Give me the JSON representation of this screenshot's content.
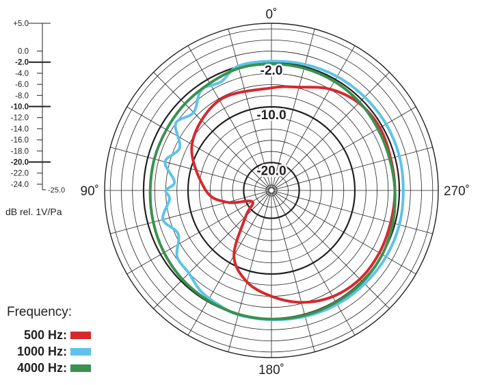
{
  "chart_data": {
    "type": "polar",
    "angle_labels": [
      {
        "deg": 0,
        "text": "0˚"
      },
      {
        "deg": 90,
        "text": "90˚"
      },
      {
        "deg": 180,
        "text": "180˚"
      },
      {
        "deg": 270,
        "text": "270˚"
      }
    ],
    "angle_direction": "counterclockwise",
    "radial_range": [
      -25,
      5
    ],
    "radial_unit": "dB rel. 1V/Pa",
    "radial_ticks": [
      {
        "value": 5,
        "text": "+5.0",
        "bold": false
      },
      {
        "value": 0,
        "text": "0.0",
        "bold": false
      },
      {
        "value": -2,
        "text": "-2.0",
        "bold": true
      },
      {
        "value": -4,
        "text": "-4.0",
        "bold": false
      },
      {
        "value": -6,
        "text": "-6.0",
        "bold": false
      },
      {
        "value": -8,
        "text": "-8.0",
        "bold": false
      },
      {
        "value": -10,
        "text": "-10.0",
        "bold": true
      },
      {
        "value": -12,
        "text": "-12.0",
        "bold": false
      },
      {
        "value": -14,
        "text": "-14.0",
        "bold": false
      },
      {
        "value": -16,
        "text": "-16.0",
        "bold": false
      },
      {
        "value": -18,
        "text": "-18.0",
        "bold": false
      },
      {
        "value": -20,
        "text": "-20.0",
        "bold": true
      },
      {
        "value": -22,
        "text": "-22.0",
        "bold": false
      },
      {
        "value": -24,
        "text": "-24.0",
        "bold": false
      },
      {
        "value": -25,
        "text": "-25.0",
        "bold": false
      }
    ],
    "ring_labels": [
      {
        "value": -2,
        "text": "-2.0"
      },
      {
        "value": -10,
        "text": "-10.0"
      },
      {
        "value": -20,
        "text": "-20.0"
      }
    ],
    "grid": true,
    "legend": {
      "title": "Frequency:",
      "placement": "bottom-left",
      "items": [
        {
          "label": "500 Hz:",
          "color": "#d7282f"
        },
        {
          "label": "1000 Hz:",
          "color": "#5ec3e8"
        },
        {
          "label": "4000 Hz:",
          "color": "#3a9150"
        }
      ]
    },
    "series": [
      {
        "name": "500 Hz",
        "color": "#d7282f",
        "angles": [
          0,
          30,
          60,
          90,
          105,
          120,
          135,
          150,
          165,
          180,
          195,
          210,
          225,
          240,
          255,
          270,
          285,
          300,
          315,
          330,
          345
        ],
        "values": [
          -6.6,
          -6.3,
          -8.5,
          -13.2,
          -16.8,
          -21.0,
          -18.5,
          -11.5,
          -8.0,
          -6.0,
          -4.2,
          -3.0,
          -2.5,
          -2.6,
          -2.8,
          -2.8,
          -2.8,
          -2.5,
          -2.8,
          -4.0,
          -5.8
        ]
      },
      {
        "name": "1000 Hz",
        "color": "#5ec3e8",
        "angles": [
          0,
          15,
          25,
          35,
          45,
          55,
          65,
          75,
          85,
          90,
          95,
          105,
          115,
          125,
          135,
          145,
          155,
          165,
          180,
          195,
          210,
          225,
          240,
          255,
          270,
          285,
          300,
          315,
          330,
          345
        ],
        "values": [
          -1.8,
          -1.9,
          -3.5,
          -3.0,
          -5.2,
          -4.0,
          -6.8,
          -5.2,
          -7.5,
          -6.0,
          -6.6,
          -4.8,
          -6.5,
          -4.3,
          -4.0,
          -2.9,
          -2.4,
          -1.9,
          -1.8,
          -1.6,
          -1.4,
          -1.3,
          -1.2,
          -1.2,
          -1.3,
          -1.2,
          -1.2,
          -1.3,
          -1.4,
          -1.6
        ]
      },
      {
        "name": "4000 Hz",
        "color": "#3a9150",
        "angles": [
          0,
          15,
          30,
          45,
          60,
          75,
          90,
          105,
          120,
          135,
          150,
          165,
          180,
          195,
          210,
          225,
          240,
          255,
          270,
          285,
          300,
          315,
          330,
          345
        ],
        "values": [
          -2.3,
          -2.3,
          -2.8,
          -3.0,
          -3.2,
          -3.2,
          -3.2,
          -3.0,
          -2.7,
          -2.4,
          -2.2,
          -2.0,
          -1.9,
          -1.8,
          -1.8,
          -1.8,
          -2.0,
          -2.4,
          -2.8,
          -3.0,
          -2.9,
          -2.6,
          -2.4,
          -2.3
        ]
      }
    ]
  }
}
